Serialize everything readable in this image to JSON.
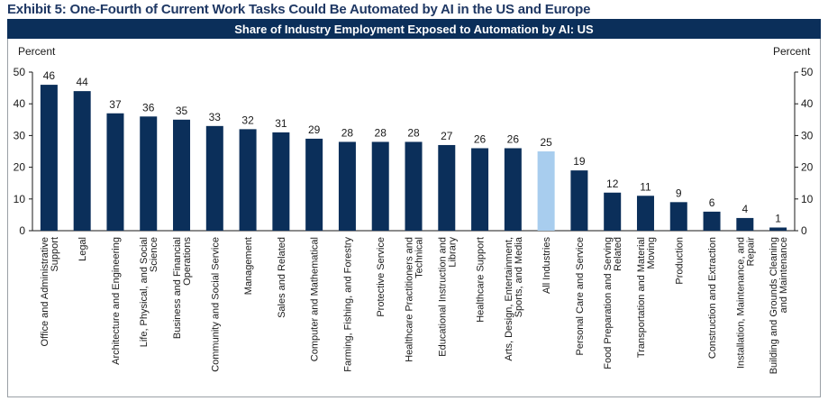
{
  "exhibit": {
    "title": "Exhibit 5: One-Fourth of Current Work Tasks Could Be Automated by AI in the US and Europe"
  },
  "colors": {
    "bar": "#0b2f5a",
    "highlight_bar": "#a8cdee",
    "banner": "#0b2f5a",
    "title": "#1f3864"
  },
  "chart_data": {
    "type": "bar",
    "title": "Share of Industry Employment Exposed to Automation by AI: US",
    "ylabel_left": "Percent",
    "ylabel_right": "Percent",
    "ylim": [
      0,
      50
    ],
    "yticks": [
      0,
      10,
      20,
      30,
      40,
      50
    ],
    "grid": false,
    "highlight_category": "All Industries",
    "categories": [
      [
        "Office and Administrative",
        "Support"
      ],
      [
        "Legal"
      ],
      [
        "Architecture and Engineering"
      ],
      [
        "Life, Physical, and Social",
        "Science"
      ],
      [
        "Business and Financial",
        "Operations"
      ],
      [
        "Community and Social Service"
      ],
      [
        "Management"
      ],
      [
        "Sales and Related"
      ],
      [
        "Computer and Mathematical"
      ],
      [
        "Farming, Fishing, and Forestry"
      ],
      [
        "Protective Service"
      ],
      [
        "Healthcare Practitioners and",
        "Technical"
      ],
      [
        "Educational Instruction and",
        "Library"
      ],
      [
        "Healthcare Support"
      ],
      [
        "Arts, Design, Entertainment,",
        "Sports, and Media"
      ],
      [
        "All Industries"
      ],
      [
        "Personal Care and Service"
      ],
      [
        "Food Preparation and Serving",
        "Related"
      ],
      [
        "Transportation and Material",
        "Moving"
      ],
      [
        "Production"
      ],
      [
        "Construction and Extraction"
      ],
      [
        "Installation, Maintenance, and",
        "Repair"
      ],
      [
        "Building and Grounds Cleaning",
        "and Maintenance"
      ]
    ],
    "values": [
      46,
      44,
      37,
      36,
      35,
      33,
      32,
      31,
      29,
      28,
      28,
      28,
      27,
      26,
      26,
      25,
      19,
      12,
      11,
      9,
      6,
      4,
      1
    ]
  }
}
